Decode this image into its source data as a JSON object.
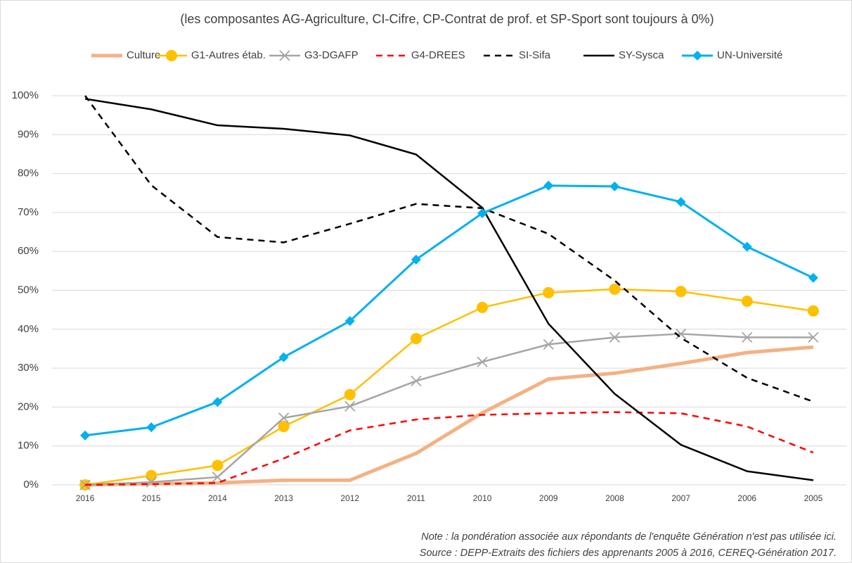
{
  "chart_data": {
    "type": "line",
    "title": "(les composantes AG-Agriculture, CI-Cifre, CP-Contrat de prof. et SP-Sport sont toujours à 0%)",
    "categories": [
      "2016",
      "2015",
      "2014",
      "2013",
      "2012",
      "2011",
      "2010",
      "2009",
      "2008",
      "2007",
      "2006",
      "2005"
    ],
    "series": [
      {
        "name": "Culture",
        "color": "#f4b183",
        "width": 5,
        "values": [
          0,
          0.3,
          0.5,
          1.2,
          1.2,
          8.1,
          18.5,
          27.2,
          28.7,
          31.2,
          34,
          35.4
        ]
      },
      {
        "name": "G1-Autres étab.",
        "color": "#ffc000",
        "width": 2.5,
        "marker": "circle",
        "values": [
          0,
          2.4,
          5,
          15,
          23.2,
          37.6,
          45.6,
          49.4,
          50.3,
          49.7,
          47.2,
          44.7
        ]
      },
      {
        "name": "G3-DGAFP",
        "color": "#a5a5a5",
        "width": 2.5,
        "marker": "x",
        "values": [
          0,
          0.7,
          2,
          17.2,
          20.2,
          26.7,
          31.6,
          36.1,
          37.9,
          38.8,
          37.9,
          37.9
        ]
      },
      {
        "name": "G4-DREES",
        "color": "#ff0000",
        "width": 2.5,
        "dash": true,
        "values": [
          0,
          0.2,
          0.5,
          6.8,
          14,
          16.8,
          18,
          18.4,
          18.7,
          18.4,
          15,
          8.3
        ]
      },
      {
        "name": "SI-Sifa",
        "color": "#000000",
        "width": 2.5,
        "dash": true,
        "values": [
          100,
          77,
          63.7,
          62.3,
          67.1,
          72.2,
          71.1,
          64.5,
          52.5,
          37.8,
          27.5,
          21.4
        ]
      },
      {
        "name": "SY-Sysca",
        "color": "#000000",
        "width": 2.5,
        "values": [
          99.2,
          96.5,
          92.4,
          91.5,
          89.8,
          84.9,
          71.2,
          41.4,
          23.4,
          10.3,
          3.5,
          1.2
        ]
      },
      {
        "name": "UN-Université",
        "color": "#00b0f0",
        "width": 3,
        "marker": "diamond",
        "values": [
          12.7,
          14.8,
          21.3,
          32.8,
          42.1,
          57.9,
          69.8,
          76.9,
          76.7,
          72.7,
          61.2,
          53.2
        ]
      }
    ],
    "ylim": [
      0,
      100
    ],
    "yticks": [
      {
        "value": 0,
        "label": "0%"
      },
      {
        "value": 10,
        "label": "10%"
      },
      {
        "value": 20,
        "label": "20%"
      },
      {
        "value": 30,
        "label": "30%"
      },
      {
        "value": 40,
        "label": "40%"
      },
      {
        "value": 50,
        "label": "50%"
      },
      {
        "value": 60,
        "label": "60%"
      },
      {
        "value": 70,
        "label": "70%"
      },
      {
        "value": 80,
        "label": "80%"
      },
      {
        "value": 90,
        "label": "90%"
      },
      {
        "value": 100,
        "label": "100%"
      }
    ],
    "grid": true,
    "legend": "top",
    "notes": [
      "Note : la pondération associée aux répondants de l'enquête Génération n'est pas utilisée ici.",
      "Source : DEPP-Extraits des fichiers des apprenants 2005 à 2016, CEREQ-Génération 2017."
    ]
  }
}
